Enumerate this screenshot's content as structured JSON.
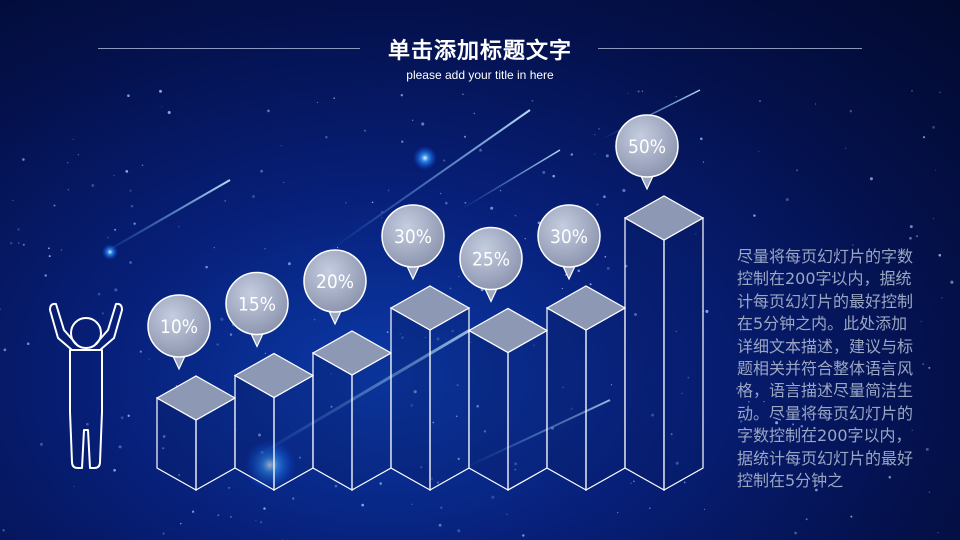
{
  "header": {
    "title": "单击添加标题文字",
    "subtitle": "please add your title in here"
  },
  "description": "尽量将每页幻灯片的字数控制在200字以内，据统计每页幻灯片的最好控制在5分钟之内。此处添加详细文本描述，建议与标题相关并符合整体语言风格，语言描述尽量简洁生动。尽量将每页幻灯片的字数控制在200字以内，据统计每页幻灯片的最好控制在5分钟之",
  "icons": {
    "person": "person-arms-raised-icon"
  },
  "colors": {
    "accent": "#8ab4ff",
    "bubble_fill": "#a7b0c8",
    "cube_top": "#8d98b5"
  },
  "chart_data": {
    "type": "bar",
    "values": [
      10,
      15,
      20,
      30,
      25,
      30,
      50
    ],
    "labels": [
      "10%",
      "15%",
      "20%",
      "30%",
      "25%",
      "30%",
      "50%"
    ],
    "ylim": [
      0,
      50
    ],
    "grid": false
  }
}
